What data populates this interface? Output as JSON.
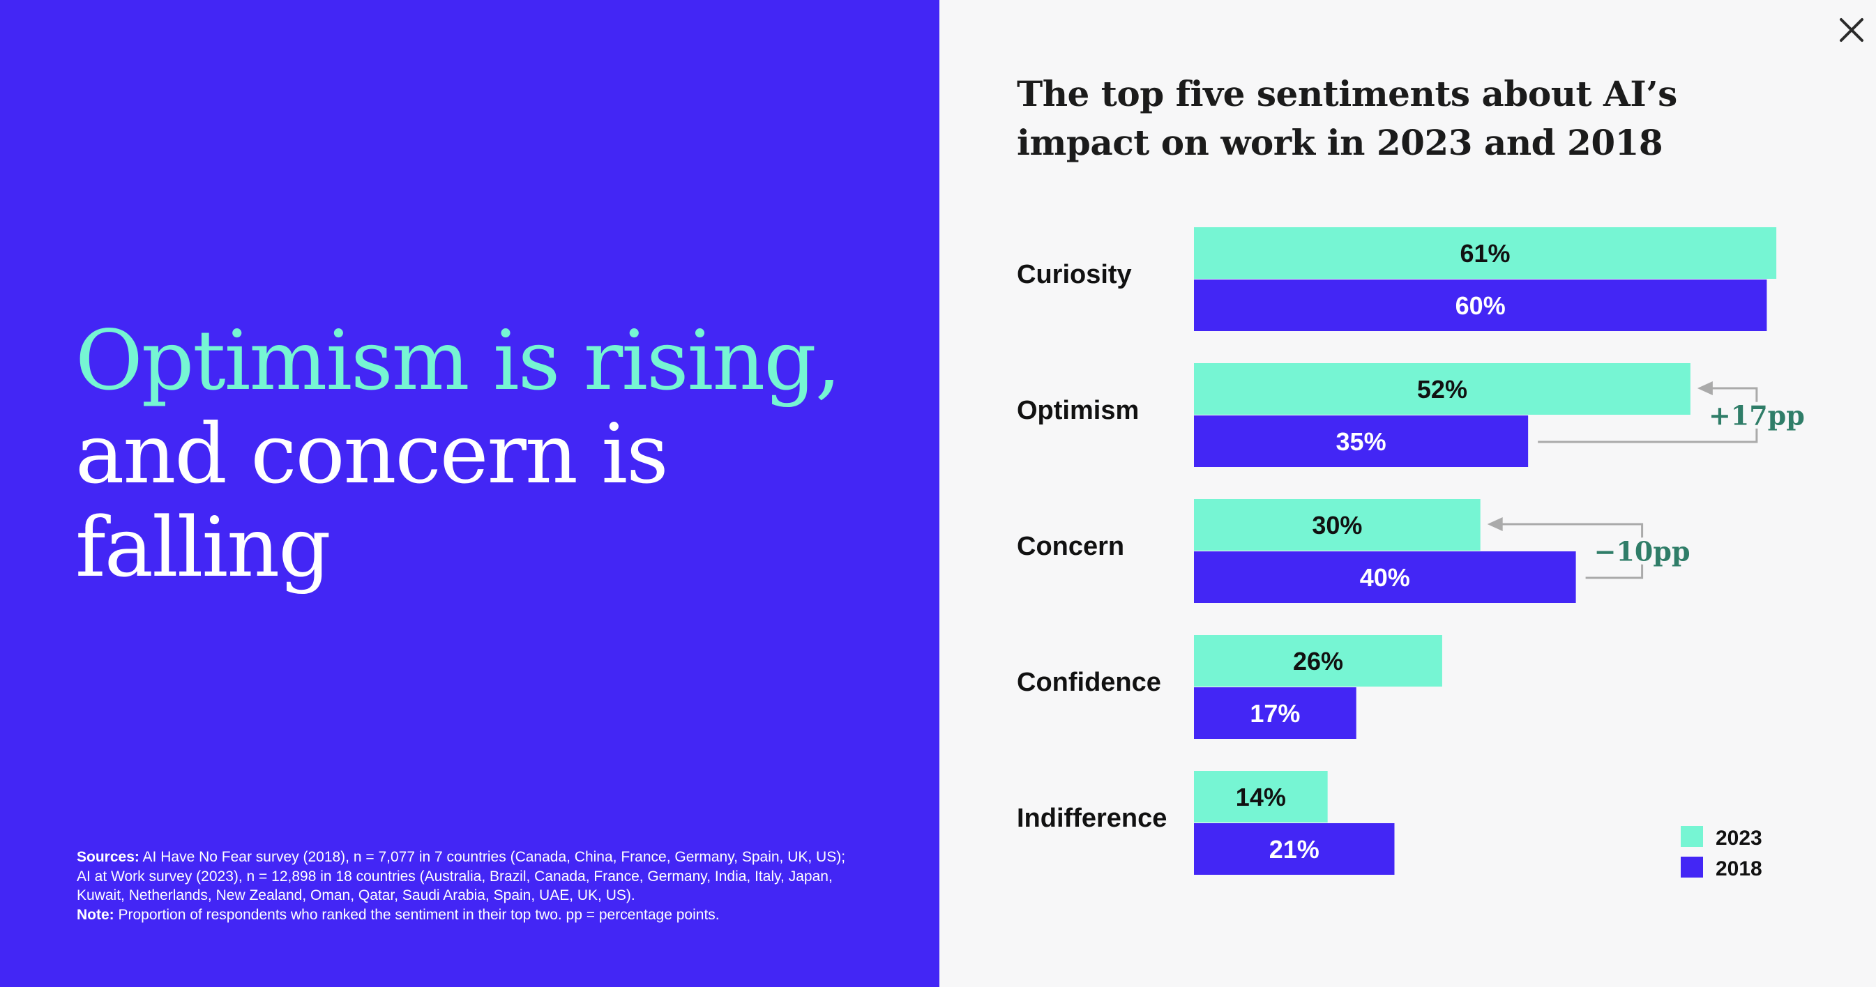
{
  "headline": {
    "accent": "Optimism is rising,",
    "rest": "and concern is falling"
  },
  "footnote": {
    "sources_label": "Sources:",
    "sources_text": " AI Have No Fear survey (2018), n = 7,077 in 7 countries (Canada, China, France, Germany, Spain, UK, US); AI at Work survey (2023), n = 12,898 in 18 countries (Australia, Brazil, Canada, France, Germany, India, Italy, Japan, Kuwait, Netherlands, New Zealand, Oman, Qatar, Saudi Arabia, Spain, UAE, UK, US).",
    "note_label": "Note:",
    "note_text": " Proportion of respondents who ranked the sentiment in their top two. pp = percentage points."
  },
  "close_icon": "close-icon",
  "colors": {
    "left_bg": "#4326f5",
    "accent": "#76f5d3",
    "series_2023": "#76f5d3",
    "series_2018": "#4326f5",
    "annotation": "#2f7d68",
    "arrow": "#aaaaaa"
  },
  "chart_data": {
    "type": "bar",
    "orientation": "horizontal",
    "title": "The top five sentiments about AI’s impact on work in 2023 and 2018",
    "categories": [
      "Curiosity",
      "Optimism",
      "Concern",
      "Confidence",
      "Indifference"
    ],
    "series": [
      {
        "name": "2023",
        "values": [
          61,
          52,
          30,
          26,
          14
        ]
      },
      {
        "name": "2018",
        "values": [
          60,
          35,
          40,
          17,
          21
        ]
      }
    ],
    "value_suffix": "%",
    "annotations": [
      {
        "category": "Optimism",
        "text": "+17pp"
      },
      {
        "category": "Concern",
        "text": "−10pp"
      }
    ],
    "legend": {
      "position": "bottom-right",
      "entries": [
        "2023",
        "2018"
      ]
    },
    "grid": false
  }
}
